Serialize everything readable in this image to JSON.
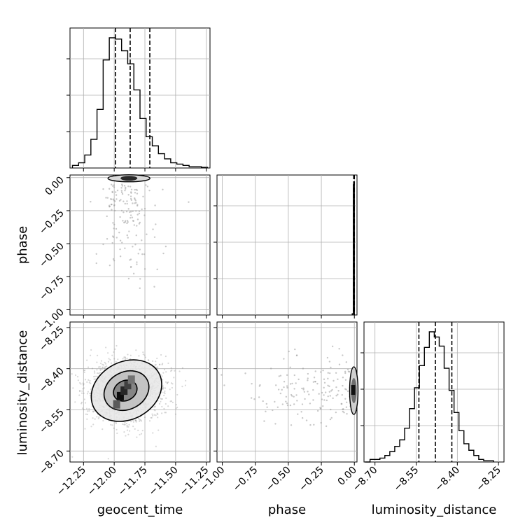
{
  "chart_data": {
    "type": "corner",
    "parameters": [
      "geocent_time",
      "phase",
      "luminosity_distance"
    ],
    "labels": {
      "x": [
        "geocent_time",
        "phase",
        "luminosity_distance"
      ],
      "y": [
        "phase",
        "luminosity_distance"
      ]
    },
    "ranges": {
      "geocent_time": [
        -12.36,
        -11.22
      ],
      "phase": [
        -1.04,
        0.02
      ],
      "luminosity_distance": [
        -8.74,
        -8.23
      ]
    },
    "ticks": {
      "geocent_time": [
        -12.25,
        -12.0,
        -11.75,
        -11.5,
        -11.25
      ],
      "phase": [
        -1.0,
        -0.75,
        -0.5,
        -0.25,
        0.0
      ],
      "luminosity_distance": [
        -8.7,
        -8.55,
        -8.4,
        -8.25
      ]
    },
    "tick_labels": {
      "geocent_time": [
        "−12.25",
        "−12.00",
        "−11.75",
        "−11.50",
        "−11.25"
      ],
      "phase": [
        "−1.00",
        "−0.75",
        "−0.50",
        "−0.25",
        "0.00"
      ],
      "luminosity_distance": [
        "−8.70",
        "−8.55",
        "−8.40",
        "−8.25"
      ]
    },
    "quantiles": {
      "geocent_time": [
        -11.99,
        -11.87,
        -11.71
      ],
      "phase": [
        -0.005,
        -0.002,
        0.0
      ],
      "luminosity_distance": [
        -8.54,
        -8.48,
        -8.42
      ]
    },
    "hist_geocent_time": {
      "bin_edges": [
        -12.34,
        -12.29,
        -12.24,
        -12.19,
        -12.14,
        -12.09,
        -12.04,
        -11.99,
        -11.94,
        -11.89,
        -11.84,
        -11.79,
        -11.74,
        -11.69,
        -11.64,
        -11.59,
        -11.54,
        -11.49,
        -11.44,
        -11.39,
        -11.34,
        -11.29,
        -11.24
      ],
      "counts": [
        2,
        4,
        10,
        22,
        45,
        83,
        100,
        99,
        90,
        80,
        60,
        38,
        24,
        17,
        11,
        7,
        4,
        3,
        2,
        1,
        1,
        0.5
      ]
    },
    "hist_phase": {
      "bin_edges": [
        -0.016,
        -0.008,
        0.0
      ],
      "counts": [
        1,
        100
      ]
    },
    "hist_luminosity_distance": {
      "bin_edges": [
        -8.736,
        -8.718,
        -8.7,
        -8.682,
        -8.664,
        -8.646,
        -8.628,
        -8.61,
        -8.592,
        -8.574,
        -8.556,
        -8.538,
        -8.52,
        -8.502,
        -8.484,
        -8.466,
        -8.448,
        -8.43,
        -8.412,
        -8.394,
        -8.376,
        -8.358,
        -8.34,
        -8.322,
        -8.304,
        -8.286,
        -8.268
      ],
      "counts": [
        0,
        2,
        2,
        3,
        5,
        8,
        12,
        17,
        26,
        41,
        57,
        74,
        88,
        100,
        96,
        89,
        72,
        55,
        38,
        24,
        14,
        9,
        5,
        2,
        1,
        1
      ]
    },
    "contours_geocent_luminosity": [
      {
        "level": "outer",
        "cx": -11.9,
        "cy": -8.48,
        "rx": 0.3,
        "ry": 0.105,
        "angle_deg": 28
      },
      {
        "level": "middle",
        "cx": -11.9,
        "cy": -8.48,
        "rx": 0.19,
        "ry": 0.068,
        "angle_deg": 28
      },
      {
        "level": "inner",
        "cx": -11.91,
        "cy": -8.48,
        "rx": 0.1,
        "ry": 0.036,
        "angle_deg": 28
      }
    ],
    "dense_cells_geocent_luminosity": [
      {
        "x": -11.95,
        "y": -8.5,
        "shade": 0.05
      },
      {
        "x": -11.92,
        "y": -8.48,
        "shade": 0.15
      },
      {
        "x": -11.89,
        "y": -8.46,
        "shade": 0.25
      },
      {
        "x": -11.98,
        "y": -8.53,
        "shade": 0.35
      },
      {
        "x": -11.86,
        "y": -8.44,
        "shade": 0.45
      }
    ],
    "scatter_center": {
      "geocent_phase": {
        "x": -11.88,
        "y": -0.005
      },
      "phase_luminosity": {
        "x": -0.004,
        "y": -8.48
      }
    },
    "grid": true
  }
}
